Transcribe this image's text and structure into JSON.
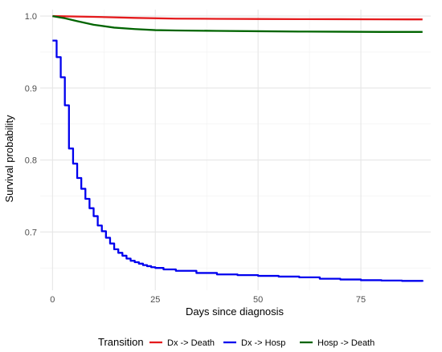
{
  "chart_data": {
    "type": "line",
    "title": "",
    "xlabel": "Days since diagnosis",
    "ylabel": "Survival probability",
    "xlim": [
      -3,
      92
    ],
    "ylim": [
      0.619,
      1.009
    ],
    "x_ticks": [
      0,
      25,
      50,
      75
    ],
    "y_ticks": [
      0.7,
      0.8,
      0.9,
      1.0
    ],
    "y_tick_labels": [
      "0.7",
      "0.8",
      "0.9",
      "1.0"
    ],
    "grid": true,
    "legend_position": "bottom",
    "legend_title": "Transition",
    "series": [
      {
        "name": "Dx -> Death",
        "color": "#e41a1c",
        "step": false,
        "points": [
          [
            0,
            1.0
          ],
          [
            10,
            0.999
          ],
          [
            20,
            0.9975
          ],
          [
            30,
            0.9965
          ],
          [
            40,
            0.9962
          ],
          [
            50,
            0.996
          ],
          [
            60,
            0.9958
          ],
          [
            70,
            0.9957
          ],
          [
            80,
            0.9955
          ],
          [
            90,
            0.9954
          ]
        ]
      },
      {
        "name": "Dx -> Hosp",
        "color": "#0000ee",
        "step": true,
        "points": [
          [
            0,
            0.966
          ],
          [
            1,
            0.943
          ],
          [
            2,
            0.915
          ],
          [
            3,
            0.876
          ],
          [
            4,
            0.816
          ],
          [
            5,
            0.795
          ],
          [
            6,
            0.775
          ],
          [
            7,
            0.76
          ],
          [
            8,
            0.746
          ],
          [
            9,
            0.733
          ],
          [
            10,
            0.722
          ],
          [
            11,
            0.709
          ],
          [
            12,
            0.701
          ],
          [
            13,
            0.692
          ],
          [
            14,
            0.684
          ],
          [
            15,
            0.676
          ],
          [
            16,
            0.671
          ],
          [
            17,
            0.667
          ],
          [
            18,
            0.663
          ],
          [
            19,
            0.66
          ],
          [
            20,
            0.658
          ],
          [
            21,
            0.656
          ],
          [
            22,
            0.654
          ],
          [
            23,
            0.6525
          ],
          [
            24,
            0.651
          ],
          [
            25,
            0.65
          ],
          [
            27,
            0.648
          ],
          [
            30,
            0.646
          ],
          [
            35,
            0.643
          ],
          [
            40,
            0.641
          ],
          [
            45,
            0.64
          ],
          [
            50,
            0.639
          ],
          [
            55,
            0.638
          ],
          [
            60,
            0.637
          ],
          [
            65,
            0.635
          ],
          [
            70,
            0.634
          ],
          [
            75,
            0.633
          ],
          [
            80,
            0.6325
          ],
          [
            85,
            0.632
          ],
          [
            90,
            0.631
          ]
        ]
      },
      {
        "name": "Hosp -> Death",
        "color": "#006400",
        "step": false,
        "points": [
          [
            0,
            1.0
          ],
          [
            3,
            0.997
          ],
          [
            6,
            0.993
          ],
          [
            10,
            0.988
          ],
          [
            15,
            0.984
          ],
          [
            20,
            0.982
          ],
          [
            25,
            0.9805
          ],
          [
            30,
            0.98
          ],
          [
            40,
            0.9795
          ],
          [
            50,
            0.979
          ],
          [
            60,
            0.9785
          ],
          [
            70,
            0.9783
          ],
          [
            80,
            0.978
          ],
          [
            90,
            0.978
          ]
        ]
      }
    ]
  }
}
